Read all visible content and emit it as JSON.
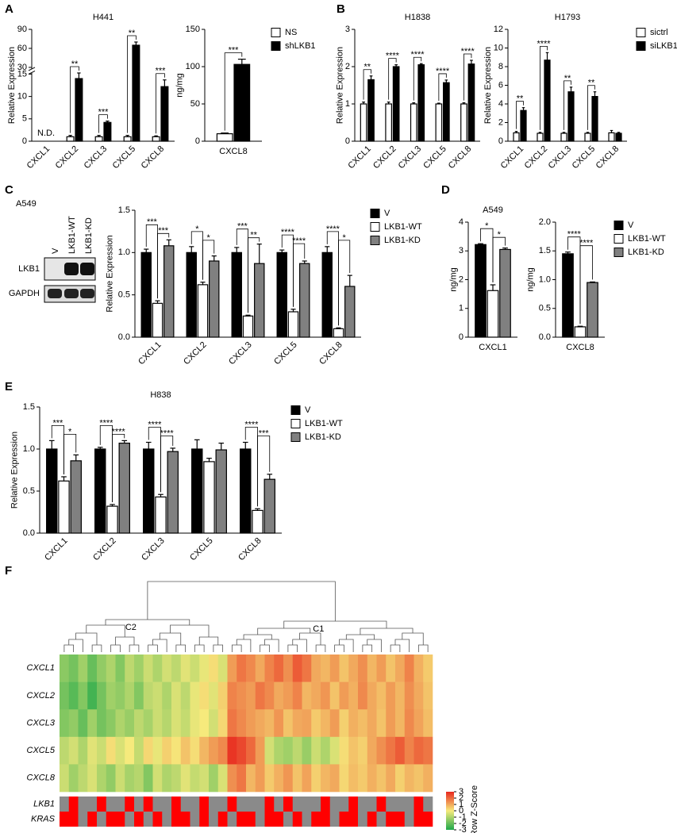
{
  "panels": [
    "A",
    "B",
    "C",
    "D",
    "E",
    "F"
  ],
  "blot": {
    "title": "A549",
    "lanes": [
      "V",
      "LKB1-WT",
      "LKB1-KD"
    ],
    "rows": [
      "LKB1",
      "GAPDH"
    ]
  },
  "chart_data": [
    {
      "type": "bar",
      "title": "H441",
      "ylabel": "Relative Expression",
      "categories": [
        "CXCL1",
        "CXCL2",
        "CXCL3",
        "CXCL5",
        "CXCL8"
      ],
      "series": [
        {
          "color": "#ffffff",
          "values": [
            null,
            1,
            1,
            1,
            1
          ],
          "errors": [
            null,
            0.3,
            0.3,
            0.3,
            0.2
          ]
        },
        {
          "color": "#000000",
          "values": [
            null,
            14,
            4.2,
            65,
            12.2
          ],
          "errors": [
            null,
            3.5,
            0.3,
            5,
            1.5
          ]
        }
      ],
      "ylim": [
        0,
        90
      ],
      "ybreak": [
        15,
        30
      ],
      "yticks": [
        0,
        5,
        10,
        15,
        30,
        60,
        90
      ],
      "xtick_rotation": 45,
      "annotations": [
        {
          "text": "N.D.",
          "category": 0
        },
        {
          "text": "**",
          "category": 1,
          "pair": [
            0,
            1
          ]
        },
        {
          "text": "***",
          "category": 2,
          "pair": [
            0,
            1
          ]
        },
        {
          "text": "**",
          "category": 3,
          "pair": [
            0,
            1
          ]
        },
        {
          "text": "***",
          "category": 4,
          "pair": [
            0,
            1
          ]
        }
      ]
    },
    {
      "type": "bar",
      "ylabel": "ng/mg",
      "categories": [
        "CXCL8"
      ],
      "series": [
        {
          "name": "NS",
          "color": "#ffffff",
          "values": [
            10
          ],
          "errors": [
            1
          ]
        },
        {
          "name": "shLKB1",
          "color": "#000000",
          "values": [
            103
          ],
          "errors": [
            7
          ]
        }
      ],
      "ylim": [
        0,
        150
      ],
      "yticks": [
        0,
        50,
        100,
        150
      ],
      "legend": "right",
      "annotations": [
        {
          "text": "***",
          "category": 0,
          "pair": [
            0,
            1
          ]
        }
      ]
    },
    {
      "type": "bar",
      "title": "H1838",
      "ylabel": "Relative Expression",
      "categories": [
        "CXCL1",
        "CXCL2",
        "CXCL3",
        "CXCL5",
        "CXCL8"
      ],
      "series": [
        {
          "color": "#ffffff",
          "values": [
            1,
            1,
            1,
            1,
            1
          ],
          "errors": [
            0.05,
            0.05,
            0.03,
            0.02,
            0.03
          ]
        },
        {
          "color": "#000000",
          "values": [
            1.65,
            2.0,
            2.05,
            1.57,
            2.07
          ],
          "errors": [
            0.1,
            0.05,
            0.03,
            0.07,
            0.1
          ]
        }
      ],
      "ylim": [
        0,
        3
      ],
      "yticks": [
        0,
        1,
        2,
        3
      ],
      "xtick_rotation": 45,
      "annotations": [
        {
          "text": "**",
          "category": 0,
          "pair": [
            0,
            1
          ]
        },
        {
          "text": "****",
          "category": 1,
          "pair": [
            0,
            1
          ]
        },
        {
          "text": "****",
          "category": 2,
          "pair": [
            0,
            1
          ]
        },
        {
          "text": "****",
          "category": 3,
          "pair": [
            0,
            1
          ]
        },
        {
          "text": "****",
          "category": 4,
          "pair": [
            0,
            1
          ]
        }
      ]
    },
    {
      "type": "bar",
      "title": "H1793",
      "ylabel": "Relative Expression",
      "categories": [
        "CXCL1",
        "CXCL2",
        "CXCL3",
        "CXCL5",
        "CXCL8"
      ],
      "series": [
        {
          "name": "sictrl",
          "color": "#ffffff",
          "values": [
            0.9,
            0.85,
            0.85,
            0.85,
            0.9
          ],
          "errors": [
            0.15,
            0.1,
            0.1,
            0.1,
            0.25
          ]
        },
        {
          "name": "siLKB1",
          "color": "#000000",
          "values": [
            3.3,
            8.7,
            5.3,
            4.8,
            0.85
          ],
          "errors": [
            0.3,
            0.8,
            0.5,
            0.5,
            0.1
          ]
        }
      ],
      "ylim": [
        0,
        12
      ],
      "yticks": [
        0,
        2,
        4,
        6,
        8,
        10,
        12
      ],
      "xtick_rotation": 45,
      "legend": "right",
      "annotations": [
        {
          "text": "**",
          "category": 0,
          "pair": [
            0,
            1
          ]
        },
        {
          "text": "****",
          "category": 1,
          "pair": [
            0,
            1
          ]
        },
        {
          "text": "**",
          "category": 2,
          "pair": [
            0,
            1
          ]
        },
        {
          "text": "**",
          "category": 3,
          "pair": [
            0,
            1
          ]
        }
      ]
    },
    {
      "type": "bar",
      "ylabel": "Relative Expression",
      "categories": [
        "CXCL1",
        "CXCL2",
        "CXCL3",
        "CXCL5",
        "CXCL8"
      ],
      "series": [
        {
          "name": "V",
          "color": "#000000",
          "values": [
            1,
            1,
            1,
            1,
            1
          ],
          "errors": [
            0.04,
            0.07,
            0.06,
            0.03,
            0.07
          ]
        },
        {
          "name": "LKB1-WT",
          "color": "#ffffff",
          "values": [
            0.4,
            0.62,
            0.25,
            0.3,
            0.1
          ],
          "errors": [
            0.03,
            0.03,
            0.01,
            0.03,
            0.01
          ]
        },
        {
          "name": "LKB1-KD",
          "color": "#808080",
          "values": [
            1.08,
            0.9,
            0.87,
            0.87,
            0.6
          ],
          "errors": [
            0.07,
            0.06,
            0.23,
            0.03,
            0.13
          ]
        }
      ],
      "ylim": [
        0,
        1.5
      ],
      "yticks": [
        {
          "value": 0,
          "label": "0.0"
        },
        0.5,
        {
          "value": 1,
          "label": "1.0"
        },
        1.5
      ],
      "xtick_rotation": 45,
      "legend": "right",
      "annotations": [
        {
          "text": "***",
          "category": 0,
          "pair": [
            0,
            1
          ]
        },
        {
          "text": "***",
          "category": 0,
          "pair": [
            1,
            2
          ]
        },
        {
          "text": "*",
          "category": 1,
          "pair": [
            0,
            1
          ]
        },
        {
          "text": "*",
          "category": 1,
          "pair": [
            1,
            2
          ]
        },
        {
          "text": "***",
          "category": 2,
          "pair": [
            0,
            1
          ]
        },
        {
          "text": "**",
          "category": 2,
          "pair": [
            1,
            2
          ]
        },
        {
          "text": "****",
          "category": 3,
          "pair": [
            0,
            1
          ]
        },
        {
          "text": "****",
          "category": 3,
          "pair": [
            1,
            2
          ]
        },
        {
          "text": "****",
          "category": 4,
          "pair": [
            0,
            1
          ]
        },
        {
          "text": "*",
          "category": 4,
          "pair": [
            1,
            2
          ]
        }
      ]
    },
    {
      "type": "bar",
      "title": "A549",
      "ylabel": "ng/mg",
      "categories": [
        "CXCL1"
      ],
      "series": [
        {
          "color": "#000000",
          "values": [
            3.22
          ],
          "errors": [
            0.03
          ]
        },
        {
          "color": "#ffffff",
          "values": [
            1.62
          ],
          "errors": [
            0.2
          ]
        },
        {
          "color": "#808080",
          "values": [
            3.05
          ],
          "errors": [
            0.05
          ]
        }
      ],
      "ylim": [
        0,
        4
      ],
      "yticks": [
        0,
        1,
        2,
        3,
        4
      ],
      "annotations": [
        {
          "text": "*",
          "category": 0,
          "pair": [
            0,
            1
          ]
        },
        {
          "text": "*",
          "category": 0,
          "pair": [
            1,
            2
          ]
        }
      ]
    },
    {
      "type": "bar",
      "ylabel": "ng/mg",
      "categories": [
        "CXCL8"
      ],
      "series": [
        {
          "name": "V",
          "color": "#000000",
          "values": [
            1.45
          ],
          "errors": [
            0.03
          ]
        },
        {
          "name": "LKB1-WT",
          "color": "#ffffff",
          "values": [
            0.18
          ],
          "errors": [
            0.01
          ]
        },
        {
          "name": "LKB1-KD",
          "color": "#808080",
          "values": [
            0.95
          ],
          "errors": [
            0.01
          ]
        }
      ],
      "ylim": [
        0,
        2
      ],
      "yticks": [
        {
          "value": 0,
          "label": "0.0"
        },
        0.5,
        {
          "value": 1,
          "label": "1.0"
        },
        1.5,
        {
          "value": 2,
          "label": "2.0"
        }
      ],
      "legend": "right",
      "annotations": [
        {
          "text": "****",
          "category": 0,
          "pair": [
            0,
            1
          ]
        },
        {
          "text": "****",
          "category": 0,
          "pair": [
            1,
            2
          ]
        }
      ]
    },
    {
      "type": "bar",
      "title": "H838",
      "ylabel": "Relative Expression",
      "categories": [
        "CXCL1",
        "CXCL2",
        "CXCL3",
        "CXCL5",
        "CXCL8"
      ],
      "series": [
        {
          "name": "V",
          "color": "#000000",
          "values": [
            1,
            1,
            1,
            1,
            1
          ],
          "errors": [
            0.1,
            0.02,
            0.08,
            0.11,
            0.08
          ]
        },
        {
          "name": "LKB1-WT",
          "color": "#ffffff",
          "values": [
            0.62,
            0.32,
            0.43,
            0.85,
            0.27
          ],
          "errors": [
            0.05,
            0.02,
            0.03,
            0.04,
            0.02
          ]
        },
        {
          "name": "LKB1-KD",
          "color": "#808080",
          "values": [
            0.86,
            1.07,
            0.97,
            0.99,
            0.64
          ],
          "errors": [
            0.07,
            0.03,
            0.04,
            0.08,
            0.06
          ]
        }
      ],
      "ylim": [
        0,
        1.5
      ],
      "yticks": [
        {
          "value": 0,
          "label": "0.0"
        },
        0.5,
        {
          "value": 1,
          "label": "1.0"
        },
        1.5
      ],
      "xtick_rotation": 45,
      "legend": "right",
      "annotations": [
        {
          "text": "***",
          "category": 0,
          "pair": [
            0,
            1
          ]
        },
        {
          "text": "*",
          "category": 0,
          "pair": [
            1,
            2
          ]
        },
        {
          "text": "****",
          "category": 1,
          "pair": [
            0,
            1
          ]
        },
        {
          "text": "****",
          "category": 1,
          "pair": [
            1,
            2
          ]
        },
        {
          "text": "****",
          "category": 2,
          "pair": [
            0,
            1
          ]
        },
        {
          "text": "****",
          "category": 2,
          "pair": [
            1,
            2
          ]
        },
        {
          "text": "****",
          "category": 4,
          "pair": [
            0,
            1
          ]
        },
        {
          "text": "***",
          "category": 4,
          "pair": [
            1,
            2
          ]
        }
      ]
    },
    {
      "type": "heatmap",
      "rows": [
        "CXCL1",
        "CXCL2",
        "CXCL3",
        "CXCL5",
        "CXCL8"
      ],
      "values": [
        [
          -1.5,
          -1.8,
          -1.2,
          -2,
          -1.4,
          -1,
          -1.6,
          -0.8,
          -1.2,
          -0.6,
          -1,
          -0.5,
          -0.8,
          -0.3,
          -0.6,
          -0.2,
          0.2,
          -0.4,
          1.2,
          1.8,
          1.5,
          1,
          1.6,
          2,
          1.4,
          2.2,
          1.8,
          1,
          0.8,
          1.2,
          0.6,
          1,
          1.4,
          0.8,
          1.2,
          0.6,
          1,
          1.6,
          0.9,
          0.5
        ],
        [
          -1.8,
          -2.2,
          -1.6,
          -2.5,
          -1.8,
          -1.2,
          -1.4,
          -1,
          -1.6,
          -0.8,
          -0.6,
          -1,
          -0.4,
          -0.8,
          -0.2,
          0.2,
          -0.3,
          0.4,
          1.6,
          1.4,
          1.2,
          1.8,
          1.5,
          1,
          1.2,
          1.6,
          0.8,
          1,
          1.3,
          0.6,
          1.2,
          0.9,
          1.5,
          1,
          0.7,
          1.2,
          0.8,
          1.4,
          1,
          0.6
        ],
        [
          -1.6,
          -1.4,
          -2,
          -1.2,
          -1.8,
          -1.5,
          -1,
          -1.3,
          -0.8,
          -1.1,
          -0.6,
          -0.9,
          -0.4,
          -0.7,
          -0.2,
          0,
          -0.5,
          0.3,
          1.8,
          1.5,
          1.2,
          1,
          0.8,
          1.3,
          0.6,
          1,
          1.1,
          0.5,
          0.8,
          1.2,
          0.4,
          0.9,
          0.7,
          1,
          0.6,
          1.2,
          0.8,
          1.5,
          1.1,
          0.7
        ],
        [
          -0.8,
          -0.5,
          -1,
          -0.3,
          -0.6,
          0.2,
          -0.4,
          0,
          -0.7,
          0.3,
          -0.2,
          0.4,
          0.1,
          0.6,
          0.2,
          0.8,
          1.2,
          1.5,
          2.8,
          2.5,
          2,
          1.2,
          -0.5,
          -1,
          -1.2,
          -0.8,
          -1.3,
          -0.6,
          -1,
          -0.4,
          0.2,
          0.6,
          0.4,
          1,
          1.4,
          1.8,
          2.2,
          1.6,
          2,
          1.8
        ],
        [
          -0.6,
          -1.2,
          -0.8,
          -0.4,
          -1,
          -1.4,
          -0.6,
          -1.1,
          -0.9,
          -1.6,
          -0.5,
          -1,
          -0.8,
          -0.3,
          -0.7,
          -0.5,
          -1.2,
          -0.4,
          1.4,
          1.8,
          0.8,
          1.2,
          0.5,
          0.9,
          1.3,
          0.6,
          1.1,
          0.4,
          0.8,
          1,
          0.3,
          0.7,
          0.5,
          0.9,
          0.6,
          1,
          0.4,
          0.8,
          0.6,
          0.9
        ]
      ],
      "colormap": [
        "#1fa84a",
        "#f6ea7c",
        "#e8281e"
      ],
      "clim": [
        -3,
        3
      ],
      "cticks": [
        -3,
        -2,
        -1,
        0,
        1,
        2,
        3
      ],
      "colorbar_label": "Row Z-Score",
      "tracks": [
        {
          "name": "LKB1",
          "values": [
            0,
            1,
            0,
            0,
            1,
            0,
            0,
            1,
            0,
            1,
            0,
            0,
            1,
            0,
            0,
            1,
            0,
            0,
            1,
            0,
            0,
            0,
            1,
            0,
            1,
            0,
            0,
            0,
            1,
            0,
            0,
            1,
            0,
            0,
            1,
            0,
            0,
            0,
            1,
            0
          ]
        },
        {
          "name": "KRAS",
          "values": [
            1,
            1,
            0,
            1,
            0,
            1,
            1,
            0,
            1,
            0,
            1,
            0,
            1,
            1,
            0,
            1,
            0,
            1,
            0,
            1,
            1,
            0,
            1,
            1,
            0,
            1,
            0,
            1,
            1,
            0,
            1,
            1,
            0,
            1,
            0,
            1,
            1,
            0,
            1,
            1
          ]
        }
      ],
      "track_colors": [
        "#8a8a8a",
        "#ff0000"
      ],
      "clusters": [
        {
          "label": "C2",
          "columns": [
            0,
            17
          ]
        },
        {
          "label": "C1",
          "columns": [
            18,
            39
          ]
        }
      ]
    }
  ]
}
